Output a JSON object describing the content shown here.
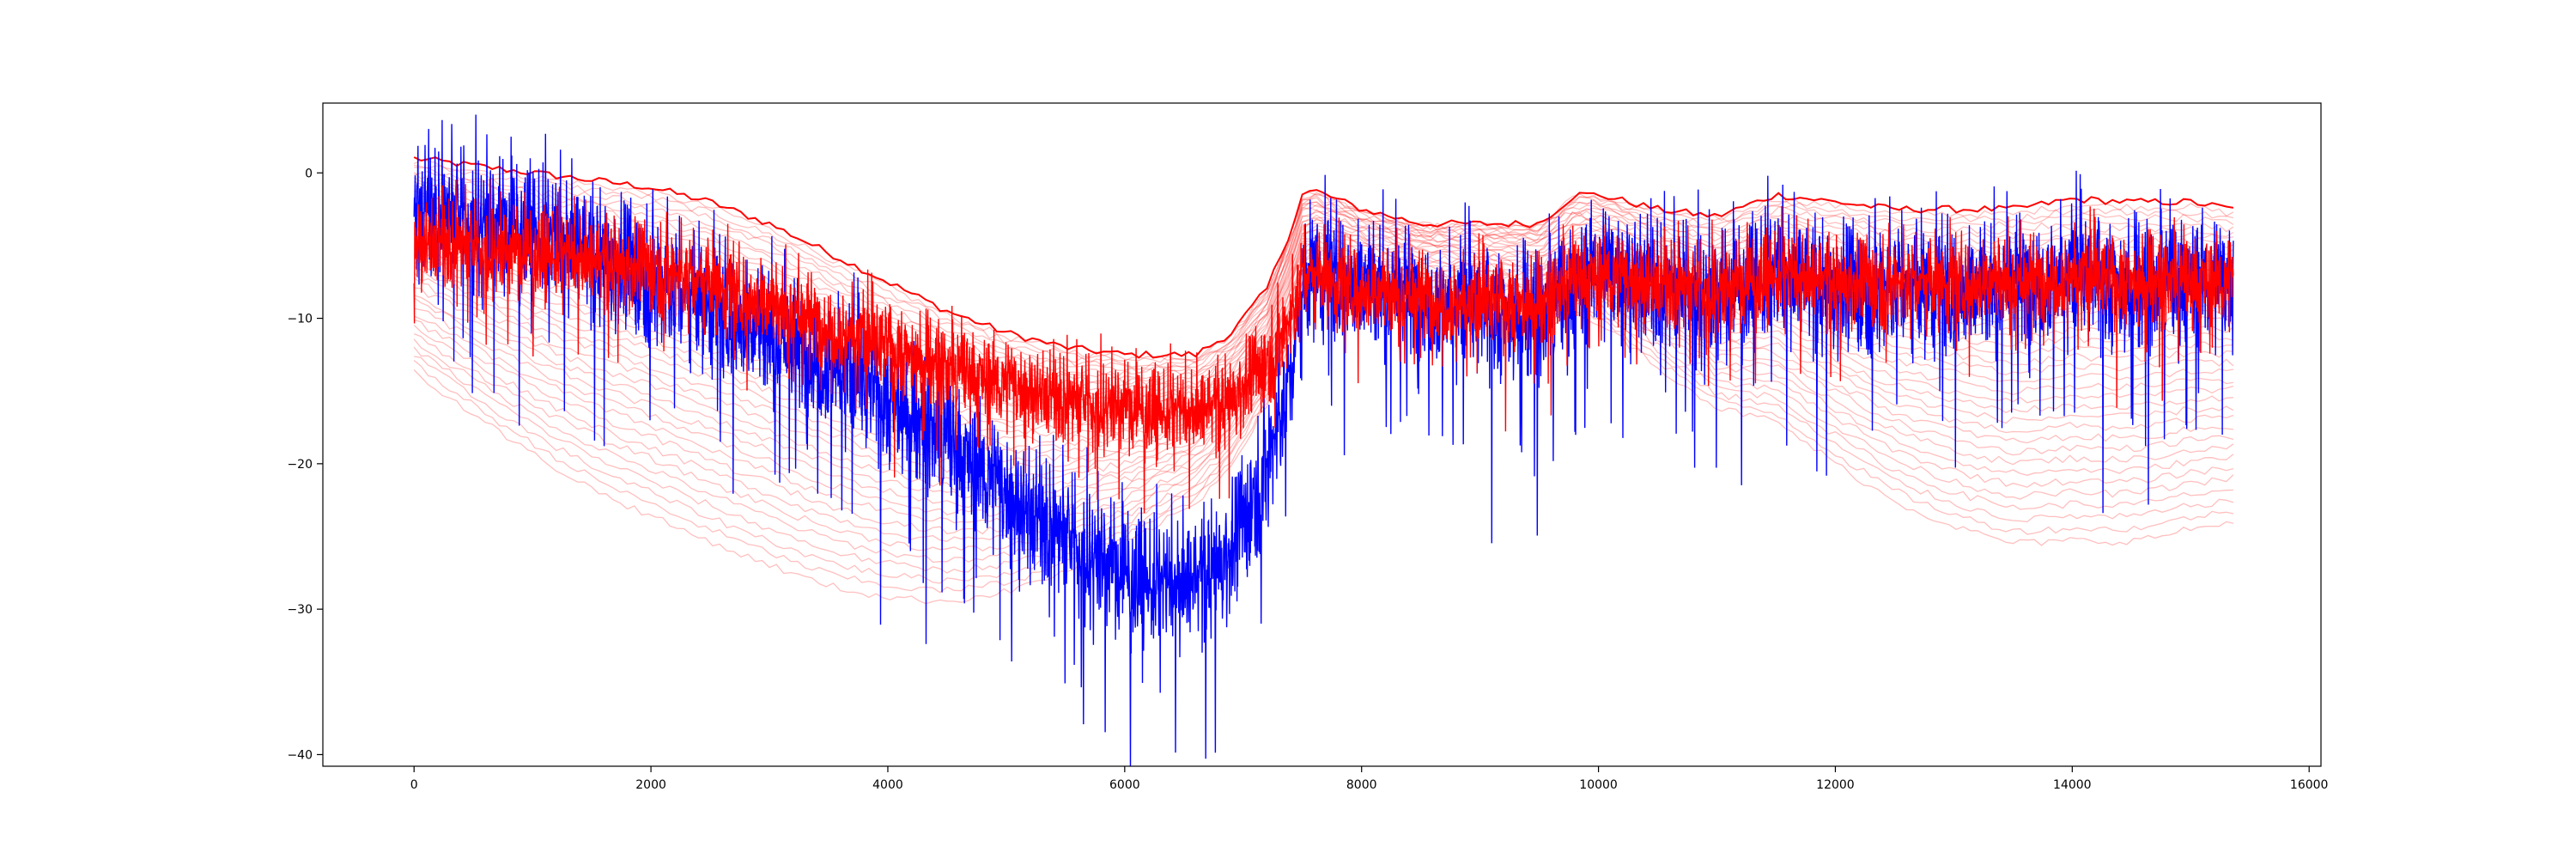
{
  "chart_data": {
    "type": "line",
    "title": "",
    "xlabel": "",
    "ylabel": "",
    "xlim": [
      -770,
      16100
    ],
    "ylim": [
      -40.8,
      4.8
    ],
    "x_ticks": [
      0,
      2000,
      4000,
      6000,
      8000,
      10000,
      12000,
      14000,
      16000
    ],
    "x_tick_labels": [
      "0",
      "2000",
      "4000",
      "6000",
      "8000",
      "10000",
      "12000",
      "14000",
      "16000"
    ],
    "y_ticks": [
      0,
      -10,
      -20,
      -30,
      -40
    ],
    "y_tick_labels": [
      "0",
      "−10",
      "−20",
      "−30",
      "−40"
    ],
    "grid": false,
    "legend": "none",
    "n_points": 15360,
    "series": [
      {
        "color": "#0000ff",
        "style": "noisy",
        "x": [
          0,
          500,
          1000,
          1500,
          2000,
          2500,
          3000,
          3500,
          4000,
          4500,
          5000,
          5500,
          6000,
          6300,
          6600,
          6900,
          7200,
          7400,
          7500,
          7600,
          8000,
          8500,
          9000,
          9500,
          9800,
          10000,
          10500,
          11000,
          11500,
          12000,
          12500,
          13000,
          13500,
          14000,
          14500,
          15000,
          15360
        ],
        "y": [
          -2.5,
          -3,
          -4,
          -5.5,
          -7,
          -9,
          -11,
          -13,
          -15.5,
          -18.5,
          -22,
          -25,
          -27.5,
          -28.5,
          -28,
          -26,
          -20,
          -14,
          -8.5,
          -6.5,
          -7.5,
          -8.5,
          -9.5,
          -10,
          -8,
          -6.5,
          -7.5,
          -8.5,
          -7,
          -8,
          -7.5,
          -8,
          -7.5,
          -7,
          -8,
          -7.5,
          -7.5
        ]
      },
      {
        "color": "#ff0000",
        "style": "noisy",
        "x": [
          0,
          500,
          1000,
          1500,
          2000,
          2500,
          3000,
          3500,
          4000,
          4500,
          5000,
          5500,
          6000,
          6300,
          6600,
          6900,
          7200,
          7400,
          7500,
          7600,
          8000,
          8500,
          9000,
          9500,
          9800,
          10000,
          10500,
          11000,
          11500,
          12000,
          12500,
          13000,
          13500,
          14000,
          14500,
          15000,
          15360
        ],
        "y": [
          -4.5,
          -5,
          -5.5,
          -6,
          -6.5,
          -7.5,
          -9,
          -10.5,
          -12,
          -13.5,
          -14.5,
          -15.5,
          -16,
          -16.5,
          -16.5,
          -15.5,
          -13,
          -10,
          -7,
          -7,
          -8,
          -8.5,
          -9,
          -9,
          -7.5,
          -7,
          -7.5,
          -8,
          -7,
          -7.5,
          -7.5,
          -7.5,
          -7.5,
          -7,
          -7.5,
          -7.5,
          -7.5
        ]
      },
      {
        "color": "#ff0000",
        "style": "smooth-envelope",
        "n_copies": 40,
        "x": [
          0,
          500,
          1000,
          1500,
          2000,
          2500,
          3000,
          3500,
          4000,
          4500,
          5000,
          5500,
          6000,
          6300,
          6600,
          6900,
          7200,
          7400,
          7500,
          7600,
          8000,
          8500,
          9000,
          9500,
          9800,
          10000,
          10500,
          11000,
          11500,
          12000,
          12500,
          13000,
          13500,
          14000,
          14500,
          15000,
          15360
        ],
        "y": [
          1,
          0.5,
          0,
          -0.5,
          -1,
          -2,
          -3.5,
          -5.5,
          -7.5,
          -9.5,
          -11,
          -12,
          -12.5,
          -12.5,
          -12.5,
          -11,
          -8,
          -4,
          -1.5,
          -1.2,
          -2.5,
          -3.5,
          -3.5,
          -3.5,
          -1.5,
          -1.5,
          -2.5,
          -3,
          -1.5,
          -2,
          -2.5,
          -2.5,
          -2.5,
          -1.8,
          -2,
          -2,
          -2.5
        ]
      }
    ]
  }
}
